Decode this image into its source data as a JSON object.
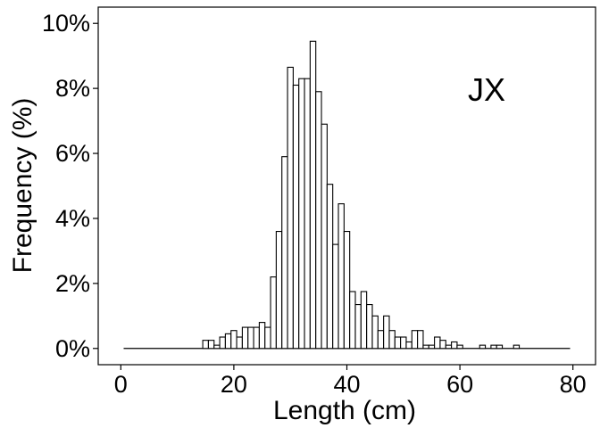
{
  "chart_data": {
    "type": "bar",
    "title": "",
    "annotation": "JX",
    "xlabel": "Length (cm)",
    "ylabel": "Frequency (%)",
    "xlim": [
      -4,
      84
    ],
    "ylim": [
      -0.5,
      10.5
    ],
    "xticks": [
      0,
      20,
      40,
      60,
      80
    ],
    "xtick_labels": [
      "0",
      "20",
      "40",
      "60",
      "80"
    ],
    "yticks": [
      0,
      2,
      4,
      6,
      8,
      10
    ],
    "ytick_labels": [
      "0%",
      "2%",
      "4%",
      "6%",
      "8%",
      "10%"
    ],
    "grid": false,
    "bin_width": 1,
    "baseline_range": [
      0.5,
      79.5
    ],
    "bins": [
      {
        "x": 15,
        "y": 0.25
      },
      {
        "x": 16,
        "y": 0.25
      },
      {
        "x": 17,
        "y": 0.1
      },
      {
        "x": 18,
        "y": 0.35
      },
      {
        "x": 19,
        "y": 0.45
      },
      {
        "x": 20,
        "y": 0.55
      },
      {
        "x": 21,
        "y": 0.35
      },
      {
        "x": 22,
        "y": 0.65
      },
      {
        "x": 23,
        "y": 0.65
      },
      {
        "x": 24,
        "y": 0.65
      },
      {
        "x": 25,
        "y": 0.8
      },
      {
        "x": 26,
        "y": 0.65
      },
      {
        "x": 27,
        "y": 2.2
      },
      {
        "x": 28,
        "y": 3.6
      },
      {
        "x": 29,
        "y": 5.9
      },
      {
        "x": 30,
        "y": 8.65
      },
      {
        "x": 31,
        "y": 8.1
      },
      {
        "x": 32,
        "y": 8.3
      },
      {
        "x": 33,
        "y": 8.3
      },
      {
        "x": 34,
        "y": 9.45
      },
      {
        "x": 35,
        "y": 7.9
      },
      {
        "x": 36,
        "y": 6.9
      },
      {
        "x": 37,
        "y": 5.05
      },
      {
        "x": 38,
        "y": 3.2
      },
      {
        "x": 39,
        "y": 4.45
      },
      {
        "x": 40,
        "y": 3.6
      },
      {
        "x": 41,
        "y": 1.75
      },
      {
        "x": 42,
        "y": 1.35
      },
      {
        "x": 43,
        "y": 1.75
      },
      {
        "x": 44,
        "y": 1.35
      },
      {
        "x": 45,
        "y": 1.0
      },
      {
        "x": 46,
        "y": 0.55
      },
      {
        "x": 47,
        "y": 1.0
      },
      {
        "x": 48,
        "y": 0.55
      },
      {
        "x": 49,
        "y": 0.35
      },
      {
        "x": 50,
        "y": 0.35
      },
      {
        "x": 51,
        "y": 0.2
      },
      {
        "x": 52,
        "y": 0.55
      },
      {
        "x": 53,
        "y": 0.55
      },
      {
        "x": 54,
        "y": 0.1
      },
      {
        "x": 55,
        "y": 0.1
      },
      {
        "x": 56,
        "y": 0.35
      },
      {
        "x": 57,
        "y": 0.25
      },
      {
        "x": 58,
        "y": 0.1
      },
      {
        "x": 59,
        "y": 0.2
      },
      {
        "x": 60,
        "y": 0.1
      },
      {
        "x": 64,
        "y": 0.1
      },
      {
        "x": 66,
        "y": 0.1
      },
      {
        "x": 67,
        "y": 0.1
      },
      {
        "x": 70,
        "y": 0.1
      }
    ]
  }
}
